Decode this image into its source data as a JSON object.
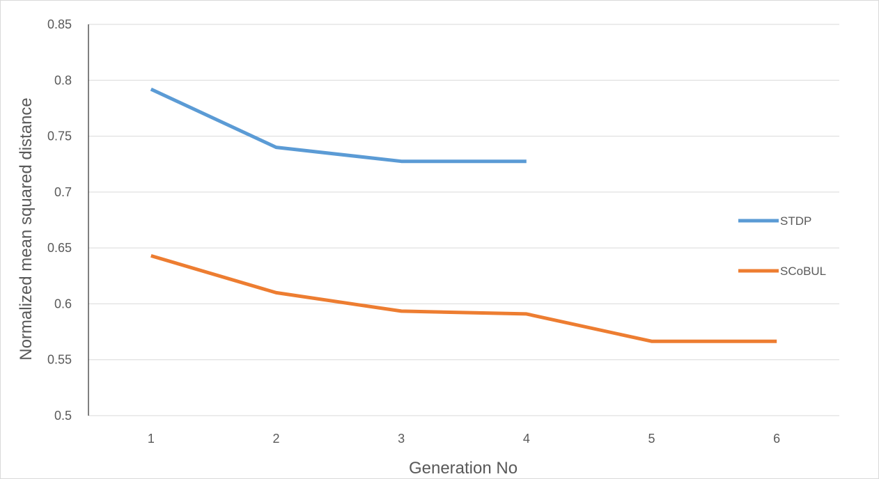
{
  "chart_data": {
    "type": "line",
    "title": "",
    "xlabel": "Generation No",
    "ylabel": "Normalized mean squared distance",
    "categories": [
      "1",
      "2",
      "3",
      "4",
      "5",
      "6"
    ],
    "ylim": [
      0.5,
      0.85
    ],
    "yticks": [
      "0.5",
      "0.55",
      "0.6",
      "0.65",
      "0.7",
      "0.75",
      "0.8",
      "0.85"
    ],
    "grid": true,
    "legend_position": "right",
    "series": [
      {
        "name": "STDP",
        "color": "#5b9bd5",
        "values": [
          0.792,
          0.74,
          0.7275,
          0.7275,
          null,
          null
        ]
      },
      {
        "name": "SCoBUL",
        "color": "#ed7d31",
        "values": [
          0.643,
          0.61,
          0.5935,
          0.591,
          0.5665,
          0.5665
        ]
      }
    ]
  }
}
